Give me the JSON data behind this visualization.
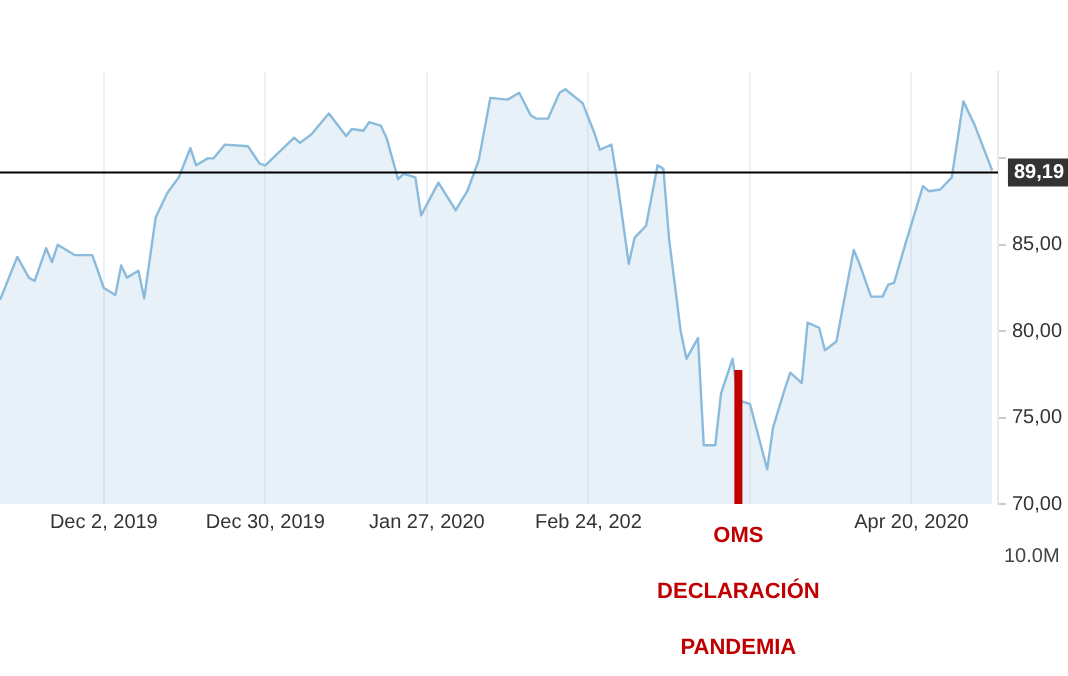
{
  "chart_data": {
    "type": "area",
    "x": [
      "2019-11-14",
      "2019-11-17",
      "2019-11-19",
      "2019-11-20",
      "2019-11-22",
      "2019-11-23",
      "2019-11-24",
      "2019-11-27",
      "2019-11-30",
      "2019-12-02",
      "2019-12-04",
      "2019-12-05",
      "2019-12-06",
      "2019-12-08",
      "2019-12-09",
      "2019-12-11",
      "2019-12-13",
      "2019-12-15",
      "2019-12-17",
      "2019-12-18",
      "2019-12-20",
      "2019-12-21",
      "2019-12-23",
      "2019-12-27",
      "2019-12-29",
      "2019-12-30",
      "2020-01-04",
      "2020-01-05",
      "2020-01-07",
      "2020-01-10",
      "2020-01-13",
      "2020-01-14",
      "2020-01-16",
      "2020-01-17",
      "2020-01-19",
      "2020-01-20",
      "2020-01-22",
      "2020-01-23",
      "2020-01-25",
      "2020-01-26",
      "2020-01-29",
      "2020-02-01",
      "2020-02-03",
      "2020-02-05",
      "2020-02-07",
      "2020-02-10",
      "2020-02-12",
      "2020-02-14",
      "2020-02-15",
      "2020-02-17",
      "2020-02-19",
      "2020-02-20",
      "2020-02-23",
      "2020-02-25",
      "2020-02-26",
      "2020-02-28",
      "2020-02-29",
      "2020-03-02",
      "2020-03-03",
      "2020-03-05",
      "2020-03-07",
      "2020-03-08",
      "2020-03-09",
      "2020-03-11",
      "2020-03-12",
      "2020-03-14",
      "2020-03-15",
      "2020-03-17",
      "2020-03-18",
      "2020-03-20",
      "2020-03-21",
      "2020-03-23",
      "2020-03-26",
      "2020-03-27",
      "2020-03-29",
      "2020-03-30",
      "2020-04-01",
      "2020-04-02",
      "2020-04-04",
      "2020-04-05",
      "2020-04-07",
      "2020-04-08",
      "2020-04-10",
      "2020-04-11",
      "2020-04-13",
      "2020-04-15",
      "2020-04-16",
      "2020-04-17",
      "2020-04-19",
      "2020-04-22",
      "2020-04-23",
      "2020-04-25",
      "2020-04-27",
      "2020-04-29",
      "2020-05-01",
      "2020-05-04"
    ],
    "series": [
      {
        "color": "#8bbbdc",
        "values": [
          81.8,
          84.3,
          83.1,
          82.9,
          84.8,
          84.0,
          85.0,
          84.4,
          84.4,
          82.5,
          82.1,
          83.8,
          83.1,
          83.5,
          81.9,
          86.6,
          88.0,
          88.9,
          90.6,
          89.6,
          90.0,
          90.0,
          90.8,
          90.7,
          89.7,
          89.6,
          91.2,
          90.9,
          91.4,
          92.6,
          91.3,
          91.7,
          91.6,
          92.1,
          91.9,
          91.2,
          88.8,
          89.1,
          88.9,
          86.7,
          88.6,
          87.0,
          88.1,
          89.9,
          93.5,
          93.4,
          93.8,
          92.5,
          92.3,
          92.3,
          93.8,
          94.0,
          93.2,
          91.5,
          90.5,
          90.8,
          88.7,
          83.9,
          85.4,
          86.1,
          89.6,
          89.4,
          85.3,
          80.0,
          78.4,
          79.6,
          73.4,
          73.4,
          76.4,
          78.4,
          76.0,
          75.8,
          72.0,
          74.4,
          76.6,
          77.6,
          77.0,
          80.5,
          80.2,
          78.9,
          79.4,
          81.2,
          84.7,
          83.9,
          82.0,
          82.0,
          82.7,
          82.8,
          85.1,
          88.4,
          88.1,
          88.2,
          88.9,
          93.3,
          91.9,
          89.3
        ]
      }
    ],
    "xlim": [
      "2019-11-14",
      "2020-05-05"
    ],
    "xticks": [
      {
        "value": "2019-12-02",
        "label": "Dec 2, 2019"
      },
      {
        "value": "2019-12-30",
        "label": "Dec 30, 2019"
      },
      {
        "value": "2020-01-27",
        "label": "Jan 27, 2020"
      },
      {
        "value": "2020-02-24",
        "label": "Feb 24, 202"
      },
      {
        "value": "2020-03-23",
        "label": null
      },
      {
        "value": "2020-04-20",
        "label": "Apr 20, 2020"
      }
    ],
    "ylim": [
      70,
      95
    ],
    "yticks": [
      {
        "value": 70,
        "label": "70,00"
      },
      {
        "value": 75,
        "label": "75,00"
      },
      {
        "value": 80,
        "label": "80,00"
      },
      {
        "value": 85,
        "label": "85,00"
      },
      {
        "value": 90,
        "label": null
      }
    ],
    "grid": "x",
    "ref_lines": [
      {
        "axis": "y",
        "value": 89.19,
        "label": "89,19",
        "color": "#000000"
      },
      {
        "axis": "x",
        "value": "2020-03-21",
        "label": "OMS",
        "color": "#c00000"
      }
    ],
    "annotations": [
      "DECLARACIÓN",
      "PANDEMIA",
      "10.0M"
    ]
  }
}
